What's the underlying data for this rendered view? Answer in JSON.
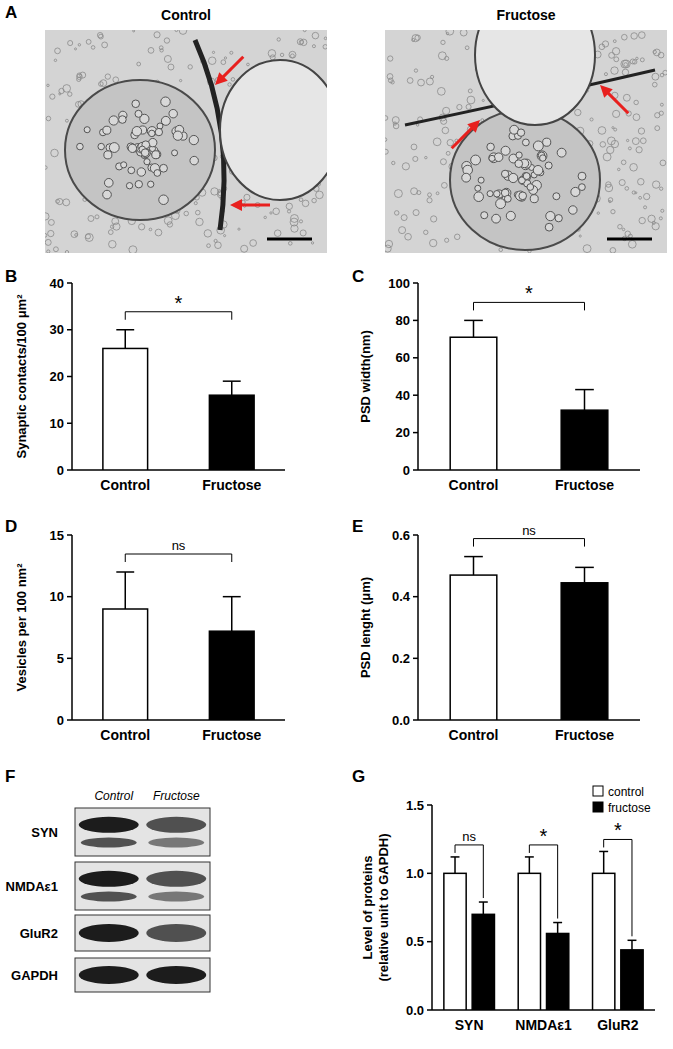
{
  "figure": {
    "panel_labels": [
      "A",
      "B",
      "C",
      "D",
      "E",
      "F",
      "G"
    ],
    "images": {
      "titles": [
        "Control",
        "Fructose"
      ]
    },
    "blot": {
      "columns": [
        "Control",
        "Fructose"
      ],
      "rows": [
        "SYN",
        "NMDAε1",
        "GluR2",
        "GAPDH"
      ]
    }
  },
  "chart_data": [
    {
      "type": "bar",
      "categories": [
        "Control",
        "Fructose"
      ],
      "values": [
        26,
        16
      ],
      "errors": [
        4,
        3
      ],
      "colors": [
        "#ffffff",
        "#000000"
      ],
      "y_label": "Synaptic contacts/100 μm²",
      "ylim": [
        0,
        40
      ],
      "yticks": [
        0,
        10,
        20,
        30,
        40
      ],
      "significance": "*"
    },
    {
      "type": "bar",
      "categories": [
        "Control",
        "Fructose"
      ],
      "values": [
        71,
        32
      ],
      "errors": [
        9,
        11
      ],
      "colors": [
        "#ffffff",
        "#000000"
      ],
      "y_label": "PSD width(nm)",
      "ylim": [
        0,
        100
      ],
      "yticks": [
        0,
        20,
        40,
        60,
        80,
        100
      ],
      "significance": "*"
    },
    {
      "type": "bar",
      "categories": [
        "Control",
        "Fructose"
      ],
      "values": [
        9,
        7.2
      ],
      "errors": [
        3,
        2.8
      ],
      "colors": [
        "#ffffff",
        "#000000"
      ],
      "y_label": "Vesicles per 100 nm²",
      "ylim": [
        0,
        15
      ],
      "yticks": [
        0,
        5,
        10,
        15
      ],
      "significance": "ns"
    },
    {
      "type": "bar",
      "categories": [
        "Control",
        "Fructose"
      ],
      "values": [
        0.47,
        0.445
      ],
      "errors": [
        0.06,
        0.05
      ],
      "colors": [
        "#ffffff",
        "#000000"
      ],
      "y_label": "PSD lenght (μm)",
      "ylim": [
        0,
        0.6
      ],
      "yticks": [
        {
          "value": 0,
          "label": "0.0"
        },
        0.2,
        0.4,
        0.6
      ],
      "significance": "ns"
    },
    {
      "type": "bar",
      "categories": [
        "SYN",
        "NMDAε1",
        "GluR2"
      ],
      "series": [
        {
          "name": "control",
          "color": "#ffffff",
          "values": [
            1,
            1,
            1
          ],
          "errors": [
            0.12,
            0.12,
            0.16
          ]
        },
        {
          "name": "fructose",
          "color": "#000000",
          "values": [
            0.7,
            0.56,
            0.44
          ],
          "errors": [
            0.09,
            0.08,
            0.07
          ]
        }
      ],
      "y_label": [
        "Level of proteins",
        "(relative unit to GAPDH)"
      ],
      "ylim": [
        0,
        1.5
      ],
      "yticks": [
        {
          "value": 0,
          "label": "0.0"
        },
        0.5,
        {
          "value": 1,
          "label": "1.0"
        },
        1.5
      ],
      "legend": "upper right",
      "significance": [
        "ns",
        "*",
        "*"
      ]
    }
  ]
}
